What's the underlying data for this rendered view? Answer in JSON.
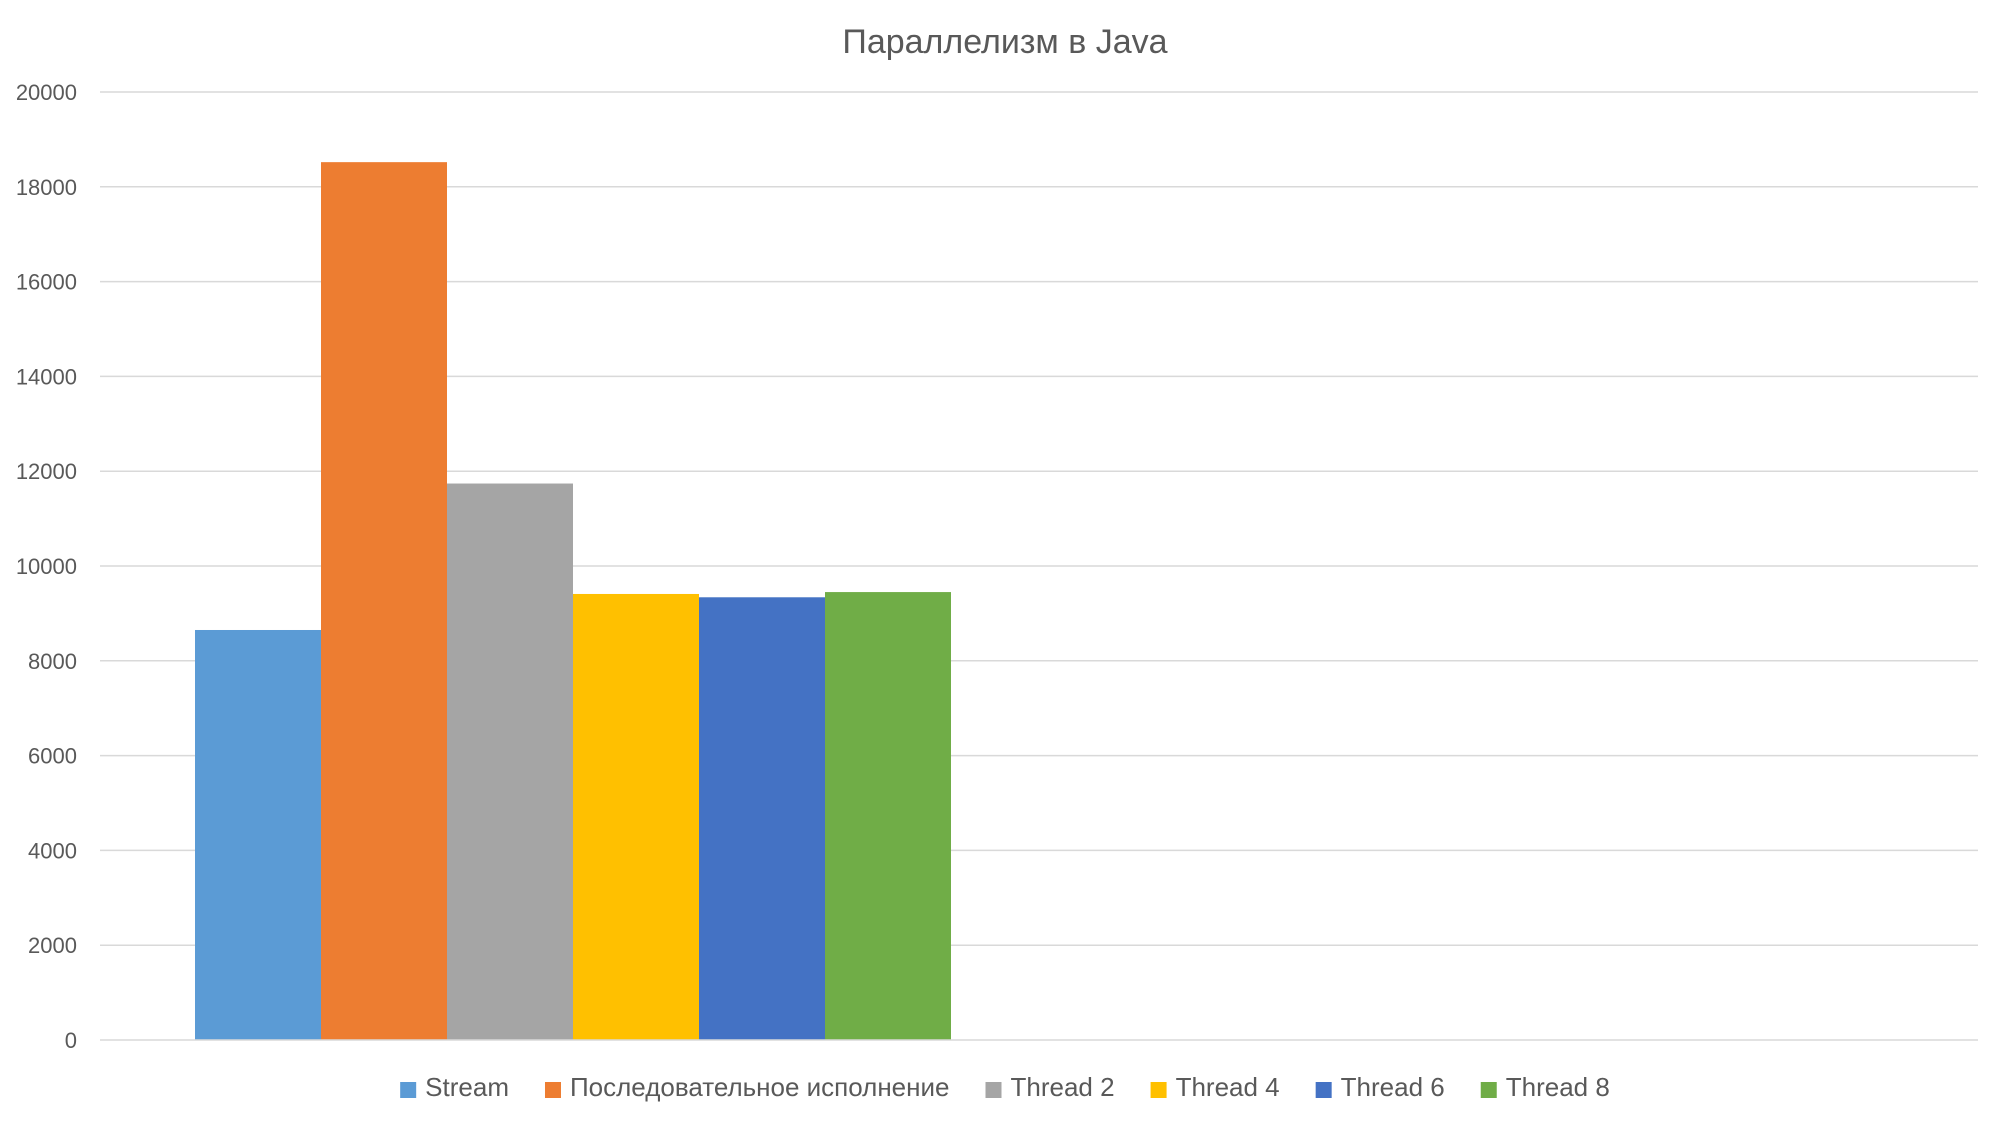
{
  "chart_data": {
    "type": "bar",
    "title": "Параллелизм в Java",
    "xlabel": "",
    "ylabel": "",
    "ylim": [
      0,
      20000
    ],
    "yticks": [
      0,
      2000,
      4000,
      6000,
      8000,
      10000,
      12000,
      14000,
      16000,
      18000,
      20000
    ],
    "grid": true,
    "legend_position": "bottom",
    "categories": [
      ""
    ],
    "series": [
      {
        "name": "Stream",
        "values": [
          8650
        ],
        "color": "#5b9bd5"
      },
      {
        "name": "Последовательное исполнение",
        "values": [
          18520
        ],
        "color": "#ed7d31"
      },
      {
        "name": "Thread 2",
        "values": [
          11740
        ],
        "color": "#a5a5a5"
      },
      {
        "name": "Thread 4",
        "values": [
          9410
        ],
        "color": "#ffc000"
      },
      {
        "name": "Thread 6",
        "values": [
          9340
        ],
        "color": "#4472c4"
      },
      {
        "name": "Thread 8",
        "values": [
          9450
        ],
        "color": "#70ad47"
      }
    ]
  }
}
